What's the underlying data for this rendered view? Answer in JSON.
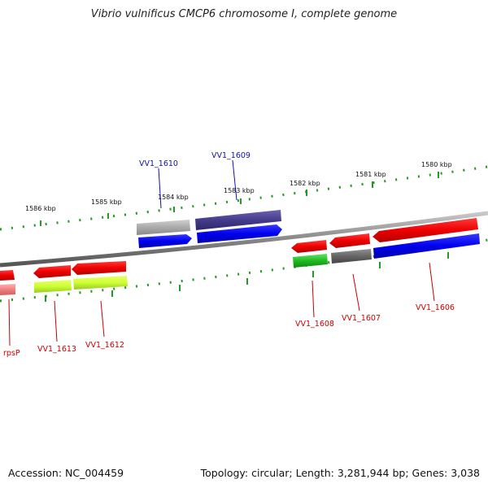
{
  "title": "Vibrio vulnificus CMCP6 chromosome I, complete genome",
  "footer": {
    "accession": "Accession: NC_004459",
    "topology": "Topology: circular; Length: 3,281,944 bp; Genes: 3,038"
  },
  "scale_labels": [
    "1586 kbp",
    "1585 kbp",
    "1584 kbp",
    "1583 kbp",
    "1582 kbp",
    "1581 kbp",
    "1580 kbp"
  ],
  "genes": [
    {
      "label": "VV1_1610",
      "color": "#1010b0"
    },
    {
      "label": "VV1_1609",
      "color": "#1010b0"
    },
    {
      "label": "rpsP",
      "color": "#cc0000"
    },
    {
      "label": "VV1_1613",
      "color": "#cc0000"
    },
    {
      "label": "VV1_1612",
      "color": "#cc0000"
    },
    {
      "label": "VV1_1608",
      "color": "#cc0000"
    },
    {
      "label": "VV1_1607",
      "color": "#cc0000"
    },
    {
      "label": "VV1_1606",
      "color": "#cc0000"
    }
  ]
}
